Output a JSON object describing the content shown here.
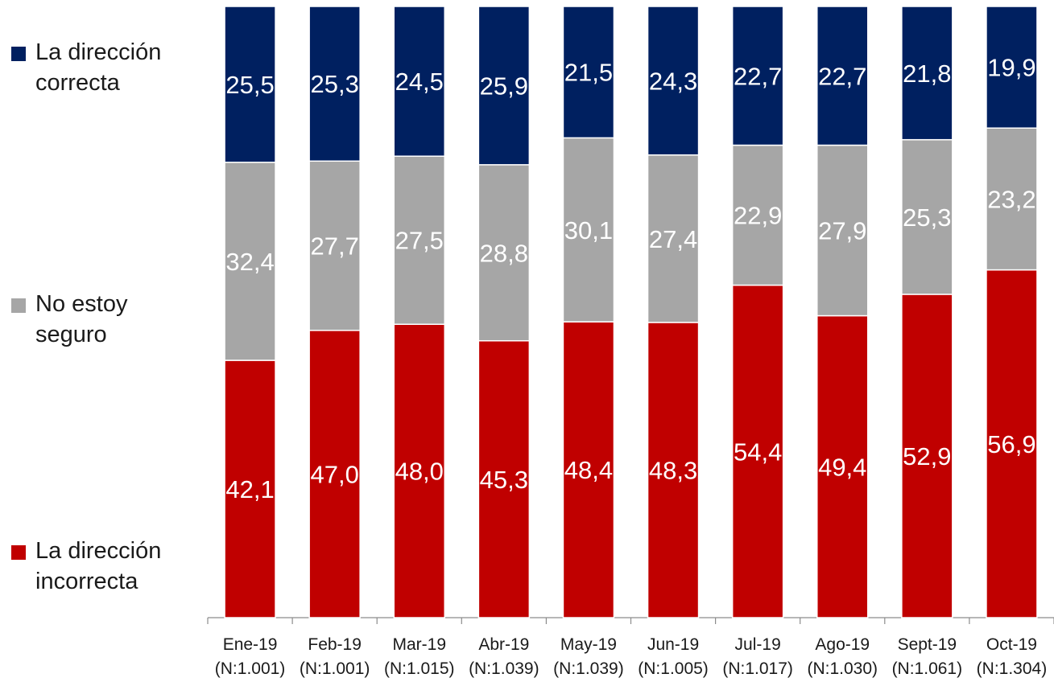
{
  "chart_data": {
    "type": "bar",
    "stacked": true,
    "normalized_total": 100,
    "categories": [
      "Ene-19",
      "Feb-19",
      "Mar-19",
      "Abr-19",
      "May-19",
      "Jun-19",
      "Jul-19",
      "Ago-19",
      "Sept-19",
      "Oct-19"
    ],
    "sample_sizes": [
      "(N:1.001)",
      "(N:1.001)",
      "(N:1.015)",
      "(N:1.039)",
      "(N:1.039)",
      "(N:1.005)",
      "(N:1.017)",
      "(N:1.030)",
      "(N:1.061)",
      "(N:1.304)"
    ],
    "series": [
      {
        "name": "La dirección incorrecta",
        "name_lines": [
          "La dirección",
          "incorrecta"
        ],
        "color": "#c00000",
        "values": [
          42.1,
          47.0,
          48.0,
          45.3,
          48.4,
          48.3,
          54.4,
          49.4,
          52.9,
          56.9
        ],
        "labels": [
          "42,1",
          "47,0",
          "48,0",
          "45,3",
          "48,4",
          "48,3",
          "54,4",
          "49,4",
          "52,9",
          "56,9"
        ]
      },
      {
        "name": "No estoy seguro",
        "name_lines": [
          "No estoy",
          "seguro"
        ],
        "color": "#a6a6a6",
        "values": [
          32.4,
          27.7,
          27.5,
          28.8,
          30.1,
          27.4,
          22.9,
          27.9,
          25.3,
          23.2
        ],
        "labels": [
          "32,4",
          "27,7",
          "27,5",
          "28,8",
          "30,1",
          "27,4",
          "22,9",
          "27,9",
          "25,3",
          "23,2"
        ]
      },
      {
        "name": "La dirección correcta",
        "name_lines": [
          "La dirección",
          "correcta"
        ],
        "color": "#002060",
        "values": [
          25.5,
          25.3,
          24.5,
          25.9,
          21.5,
          24.3,
          22.7,
          22.7,
          21.8,
          19.9
        ],
        "labels": [
          "25,5",
          "25,3",
          "24,5",
          "25,9",
          "21,5",
          "24,3",
          "22,7",
          "22,7",
          "21,8",
          "19,9"
        ]
      }
    ],
    "legend_position": "left",
    "grid": false
  }
}
